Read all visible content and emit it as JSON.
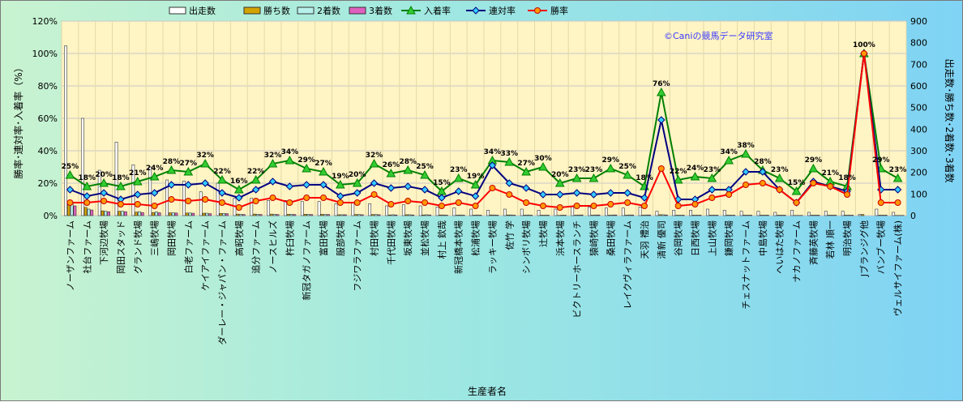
{
  "chart_data": {
    "type": "bar+line",
    "xlabel": "生産者名",
    "ylabel_left": "勝率･連対率･入着率（%）",
    "ylabel_right": "出走数･勝ち数･2着数･3着数",
    "watermark": "©Caniの競馬データ研究室",
    "ylim_left": [
      0,
      120
    ],
    "ylim_right": [
      0,
      900
    ],
    "y_ticks_left": [
      "0%",
      "20%",
      "40%",
      "60%",
      "80%",
      "100%",
      "120%"
    ],
    "y_ticks_right": [
      "0",
      "100",
      "200",
      "300",
      "400",
      "500",
      "600",
      "700",
      "800",
      "900"
    ],
    "legend": [
      {
        "name": "出走数",
        "kind": "bar",
        "color": "#ffffff"
      },
      {
        "name": "勝ち数",
        "kind": "bar",
        "color": "#d4a300"
      },
      {
        "name": "2着数",
        "kind": "bar",
        "color": "#b8f0ec"
      },
      {
        "name": "3着数",
        "kind": "bar",
        "color": "#e060c0"
      },
      {
        "name": "入着率",
        "kind": "line",
        "color": "#008000",
        "marker": "triangle",
        "marker_color": "#33cc33"
      },
      {
        "name": "連対率",
        "kind": "line",
        "color": "#000080",
        "marker": "diamond",
        "marker_color": "#33ccff"
      },
      {
        "name": "勝率",
        "kind": "line",
        "color": "#ff0000",
        "marker": "circle",
        "marker_color": "#ff9900"
      }
    ],
    "categories": [
      "ノーザンファーム",
      "社台ファーム",
      "下河辺牧場",
      "岡田スタッド",
      "グランド牧場",
      "三嶋牧場",
      "岡田牧場",
      "白老ファーム",
      "ケイアイファーム",
      "ダーレー・ジャパン・ファーム",
      "高昭牧場",
      "追分ファーム",
      "ノースヒルズ",
      "杵臼牧場",
      "新冠タガノファーム",
      "富田牧場",
      "服部牧場",
      "フジワラファーム",
      "村田牧場",
      "千代田牧場",
      "坂東牧場",
      "並松牧場",
      "村上 欽哉",
      "新冠橋本牧場",
      "松浦牧場",
      "ラッキー牧場",
      "佐竹 学",
      "シンボリ牧場",
      "辻牧場",
      "浜本牧場",
      "ビクトリーホースランチ",
      "猿崎牧場",
      "桑田牧場",
      "レイクヴィラファーム",
      "天羽 禮治",
      "清新 優司",
      "谷岡牧場",
      "日西牧場",
      "上山牧場",
      "鎌岡牧場",
      "チェスナットファーム",
      "中島牧場",
      "へいはた牧場",
      "ナカノファーム",
      "斉藤英牧場",
      "若林 順一",
      "明治牧場",
      "Jブランジグ他",
      "バンブー牧場",
      "ヴェルサイファーム(株)"
    ],
    "series": [
      {
        "name": "出走数",
        "values": [
          785,
          450,
          210,
          340,
          235,
          225,
          165,
          160,
          110,
          150,
          80,
          80,
          70,
          70,
          65,
          65,
          55,
          60,
          55,
          45,
          50,
          45,
          40,
          35,
          30,
          25,
          30,
          30,
          25,
          30,
          40,
          40,
          35,
          35,
          40,
          20,
          25,
          25,
          30,
          25,
          20,
          20,
          15,
          25,
          15,
          20,
          20,
          5,
          30,
          15
        ]
      },
      {
        "name": "勝ち数",
        "values": [
          55,
          38,
          22,
          20,
          16,
          14,
          13,
          12,
          11,
          10,
          7,
          7,
          7,
          6,
          6,
          6,
          4,
          5,
          5,
          3,
          4,
          3,
          3,
          2,
          2,
          3,
          3,
          2,
          2,
          1,
          2,
          2,
          2,
          2,
          2,
          4,
          2,
          2,
          2,
          2,
          2,
          2,
          2,
          1,
          2,
          2,
          2,
          5,
          2,
          1
        ]
      },
      {
        "name": "2着数",
        "values": [
          55,
          30,
          20,
          20,
          18,
          17,
          13,
          12,
          11,
          10,
          6,
          6,
          6,
          6,
          6,
          5,
          4,
          5,
          5,
          4,
          4,
          4,
          3,
          3,
          3,
          3,
          3,
          3,
          2,
          2,
          3,
          3,
          3,
          3,
          3,
          4,
          2,
          2,
          2,
          2,
          2,
          2,
          2,
          1,
          2,
          2,
          2,
          0,
          2,
          1
        ]
      },
      {
        "name": "3着数",
        "values": [
          45,
          26,
          18,
          18,
          14,
          13,
          12,
          11,
          9,
          9,
          5,
          5,
          5,
          5,
          5,
          5,
          4,
          4,
          4,
          3,
          3,
          3,
          2,
          2,
          2,
          2,
          2,
          2,
          2,
          2,
          3,
          3,
          3,
          3,
          3,
          3,
          2,
          2,
          2,
          2,
          2,
          2,
          2,
          1,
          2,
          2,
          2,
          0,
          2,
          1
        ]
      },
      {
        "name": "入着率",
        "values": [
          25,
          18,
          20,
          18,
          21,
          24,
          28,
          27,
          32,
          22,
          16,
          22,
          32,
          34,
          29,
          27,
          19,
          20,
          32,
          26,
          28,
          25,
          15,
          23,
          19,
          34,
          33,
          27,
          30,
          20,
          23,
          23,
          29,
          25,
          18,
          76,
          22,
          24,
          23,
          34,
          38,
          28,
          23,
          15,
          29,
          21,
          18,
          100,
          29,
          23
        ]
      },
      {
        "name": "連対率",
        "values": [
          16,
          12,
          14,
          10,
          13,
          14,
          19,
          19,
          20,
          14,
          11,
          16,
          21,
          18,
          19,
          19,
          12,
          14,
          20,
          17,
          18,
          16,
          11,
          15,
          12,
          31,
          20,
          17,
          13,
          13,
          14,
          13,
          14,
          14,
          11,
          59,
          10,
          10,
          16,
          16,
          27,
          27,
          16,
          8,
          21,
          18,
          15,
          100,
          16,
          16
        ]
      },
      {
        "name": "勝率",
        "values": [
          8,
          8,
          9,
          7,
          7,
          6,
          10,
          9,
          10,
          8,
          5,
          9,
          11,
          8,
          11,
          11,
          8,
          8,
          13,
          7,
          9,
          8,
          6,
          8,
          6,
          17,
          13,
          8,
          6,
          5,
          6,
          6,
          7,
          8,
          6,
          29,
          6,
          7,
          11,
          13,
          19,
          20,
          16,
          8,
          20,
          18,
          13,
          100,
          8,
          8
        ]
      }
    ],
    "rate_labels": [
      "25%",
      "18%",
      "20%",
      "18%",
      "21%",
      "24%",
      "28%",
      "27%",
      "32%",
      "22%",
      "16%",
      "22%",
      "32%",
      "34%",
      "29%",
      "27%",
      "19%",
      "20%",
      "32%",
      "26%",
      "28%",
      "25%",
      "15%",
      "23%",
      "19%",
      "34%",
      "33%",
      "27%",
      "30%",
      "20%",
      "23%",
      "23%",
      "29%",
      "25%",
      "18%",
      "76%",
      "22%",
      "24%",
      "23%",
      "34%",
      "38%",
      "28%",
      "23%",
      "15%",
      "29%",
      "21%",
      "18%",
      "100%",
      "29%",
      "23%"
    ]
  }
}
